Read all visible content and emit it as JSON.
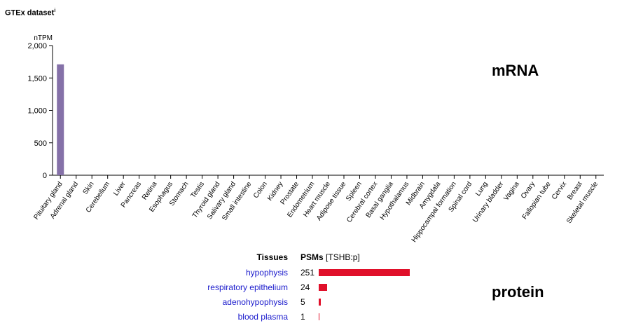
{
  "header": {
    "title": "GTEx dataset",
    "info_mark": "i"
  },
  "labels": {
    "mrna": "mRNA",
    "protein": "protein"
  },
  "colors": {
    "bar": "#8571a8",
    "protein_bar": "#e0102a",
    "tissue_link": "#1a1acc"
  },
  "chart_data": {
    "type": "bar",
    "ylabel": "nTPM",
    "ylim": [
      0,
      2000
    ],
    "yticks": [
      0,
      500,
      1000,
      1500,
      2000
    ],
    "ytick_labels": [
      "0",
      "500",
      "1,000",
      "1,500",
      "2,000"
    ],
    "categories": [
      "Pituitary gland",
      "Adrenal gland",
      "Skin",
      "Cerebellum",
      "Liver",
      "Pancreas",
      "Retina",
      "Esophagus",
      "Stomach",
      "Testis",
      "Thyroid gland",
      "Salivary gland",
      "Small intestine",
      "Colon",
      "Kidney",
      "Prostate",
      "Endometrium",
      "Heart muscle",
      "Adipose tissue",
      "Spleen",
      "Cerebral cortex",
      "Basal ganglia",
      "Hypothalamus",
      "Midbrain",
      "Amygdala",
      "Hippocampal formation",
      "Spinal cord",
      "Lung",
      "Urinary bladder",
      "Vagina",
      "Ovary",
      "Fallopian tube",
      "Cervix",
      "Breast",
      "Skeletal muscle"
    ],
    "values": [
      1710,
      0,
      0,
      0,
      0,
      0,
      0,
      0,
      0,
      0,
      0,
      0,
      0,
      0,
      0,
      0,
      0,
      0,
      0,
      0,
      0,
      0,
      0,
      0,
      0,
      0,
      0,
      0,
      0,
      0,
      0,
      0,
      0,
      0,
      0
    ]
  },
  "protein_table": {
    "header_tissues": "Tissues",
    "header_psms": "PSMs",
    "header_gene": "[TSHB:p]",
    "max_value": 251,
    "rows": [
      {
        "tissue": "hypophysis",
        "value": 251,
        "value_label": "251"
      },
      {
        "tissue": "respiratory epithelium",
        "value": 24,
        "value_label": "24"
      },
      {
        "tissue": "adenohypophysis",
        "value": 5,
        "value_label": "5"
      },
      {
        "tissue": "blood plasma",
        "value": 1,
        "value_label": "1"
      }
    ]
  }
}
